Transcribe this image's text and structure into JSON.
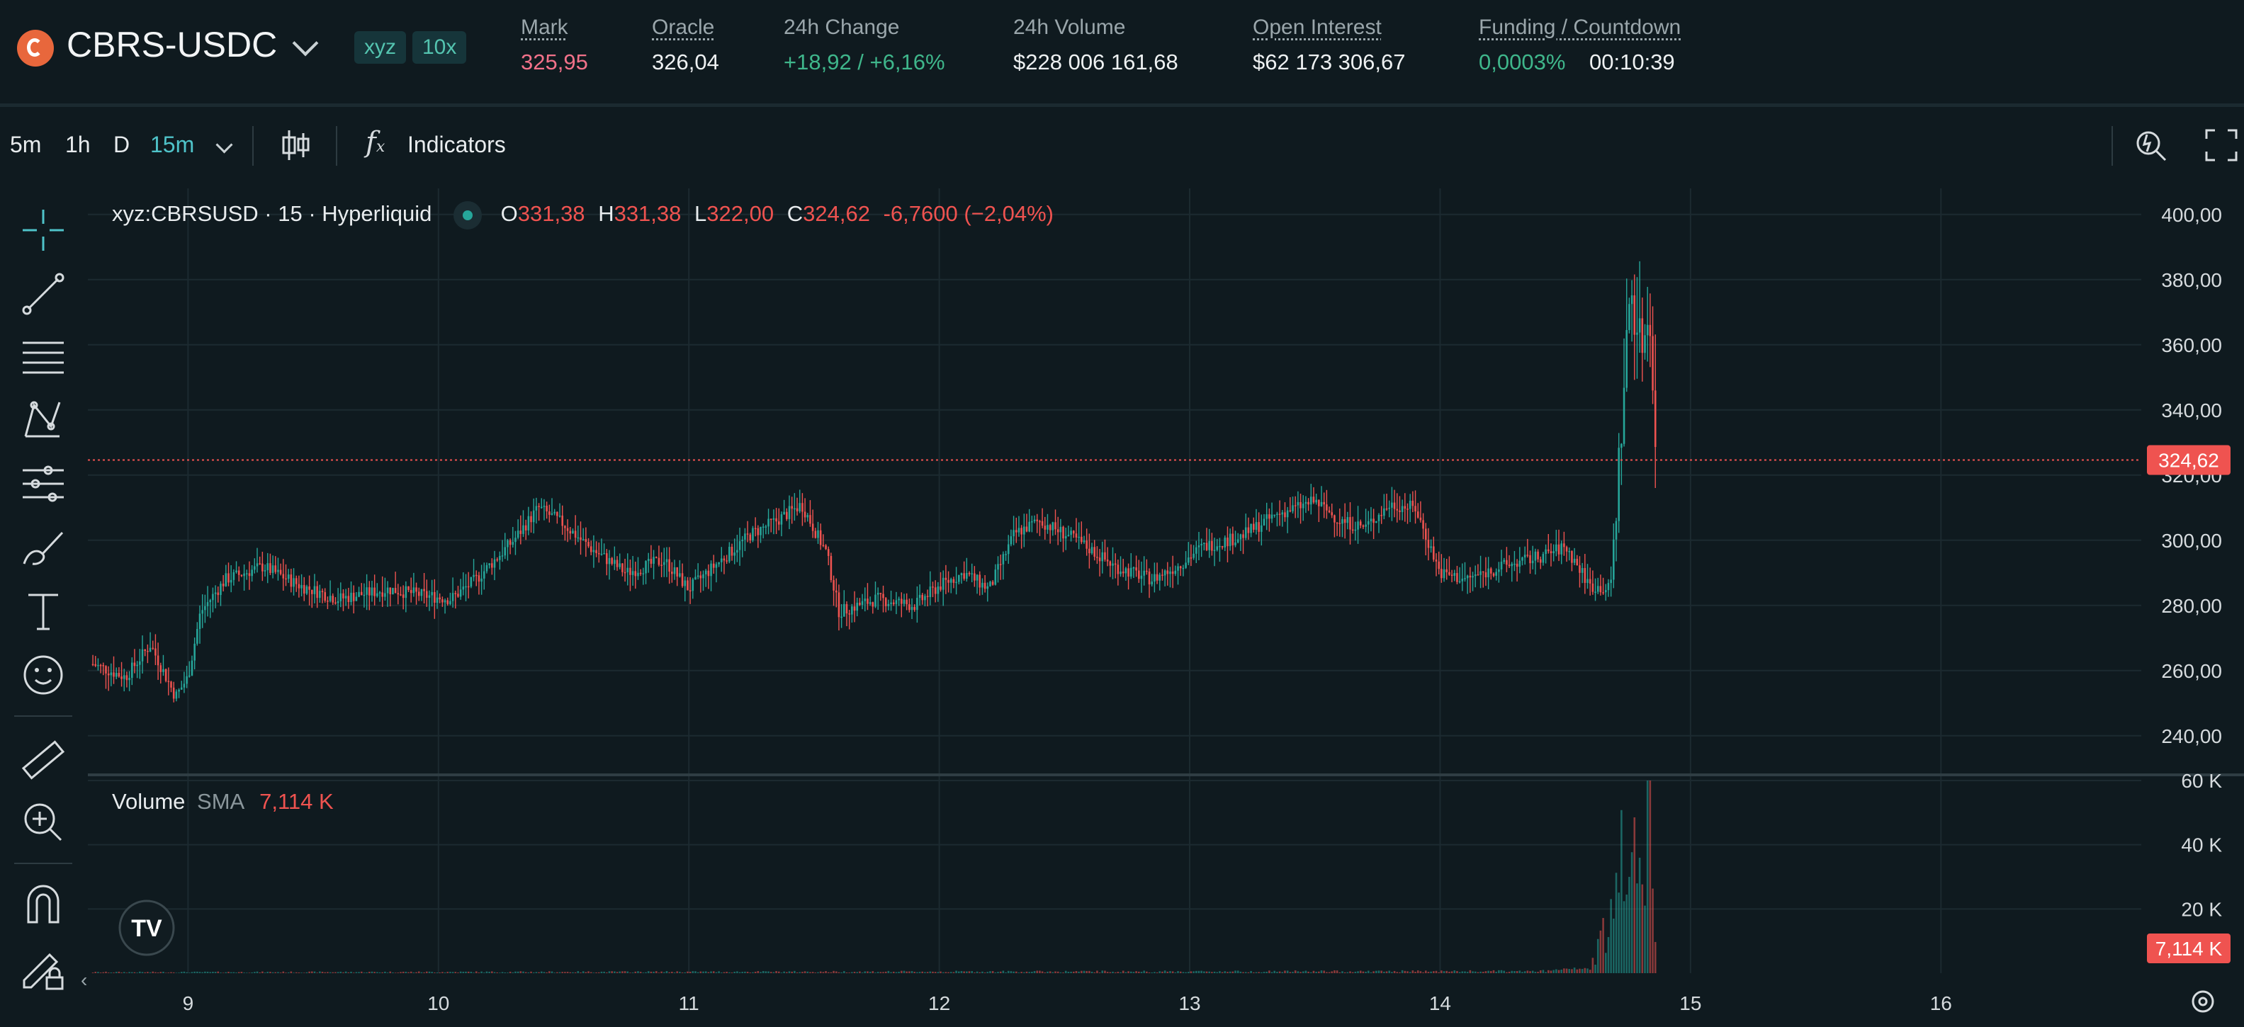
{
  "header": {
    "symbol": "CBRS-USDC",
    "dex_badge": "xyz",
    "leverage_badge": "10x",
    "stats": [
      {
        "label": "Mark",
        "value": "325,95",
        "value_color": "#f2728a"
      },
      {
        "label": "Oracle",
        "value": "326,04",
        "value_color": "#eef1f2"
      },
      {
        "label": "24h Change",
        "value": "+18,92 / +6,16%",
        "value_color": "#3fb68b"
      },
      {
        "label": "24h Volume",
        "value": "$228 006 161,68",
        "value_color": "#eef1f2"
      },
      {
        "label": "Open Interest",
        "value": "$62 173 306,67",
        "value_color": "#eef1f2"
      },
      {
        "label": "Funding / Countdown",
        "value": "0,0003%",
        "value2": "00:10:39",
        "value_color": "#3fb68b"
      }
    ]
  },
  "toolbar": {
    "timeframes": [
      "5m",
      "1h",
      "D"
    ],
    "active_timeframe": "15m",
    "indicators_label": "Indicators",
    "active_color": "#4fc3c9"
  },
  "left_tools": [
    "crosshair-icon",
    "trendline-icon",
    "fib-icon",
    "pattern-icon",
    "gann-icon",
    "brush-icon",
    "text-icon",
    "emoji-icon",
    "ruler-icon",
    "zoom-in-icon",
    "magnet-icon",
    "lock-draw-icon"
  ],
  "legend": {
    "title": "xyz:CBRSUSD · 15 · Hyperliquid",
    "o_label": "O",
    "o": "331,38",
    "h_label": "H",
    "h": "331,38",
    "l_label": "L",
    "l": "322,00",
    "c_label": "C",
    "c": "324,62",
    "change": "-6,7600 (−2,04%)"
  },
  "volume_legend": {
    "label": "Volume",
    "sma_label": "SMA",
    "sma_value": "7,114 K"
  },
  "price_axis": {
    "ticks": [
      "400,00",
      "380,00",
      "360,00",
      "340,00",
      "320,00",
      "300,00",
      "280,00",
      "260,00",
      "240,00"
    ],
    "tick_values": [
      400,
      380,
      360,
      340,
      320,
      300,
      280,
      260,
      240
    ],
    "last_price": "324,62",
    "last_value": 324.62
  },
  "volume_axis": {
    "ticks": [
      "60 K",
      "40 K",
      "20 K"
    ],
    "last_value_label": "7,114 K"
  },
  "time_axis": {
    "ticks": [
      "9",
      "10",
      "11",
      "12",
      "13",
      "14",
      "15",
      "16"
    ]
  },
  "colors": {
    "up": "#26a69a",
    "down": "#ef5350",
    "background": "#0f1a1f",
    "grid": "#1c2a30"
  },
  "chart_data": {
    "type": "candlestick",
    "series_name": "xyz:CBRSUSD",
    "x_unit": "day of month (15m candles)",
    "x_range": [
      8.6,
      16.8
    ],
    "ylim": [
      228,
      408
    ],
    "keypoints": [
      [
        8.62,
        262
      ],
      [
        8.75,
        258
      ],
      [
        8.85,
        268
      ],
      [
        8.95,
        252
      ],
      [
        9.0,
        258
      ],
      [
        9.05,
        278
      ],
      [
        9.15,
        288
      ],
      [
        9.3,
        292
      ],
      [
        9.45,
        286
      ],
      [
        9.6,
        282
      ],
      [
        9.8,
        285
      ],
      [
        9.95,
        283
      ],
      [
        10.05,
        282
      ],
      [
        10.15,
        288
      ],
      [
        10.3,
        300
      ],
      [
        10.4,
        310
      ],
      [
        10.5,
        305
      ],
      [
        10.6,
        298
      ],
      [
        10.75,
        290
      ],
      [
        10.9,
        294
      ],
      [
        11.0,
        285
      ],
      [
        11.1,
        292
      ],
      [
        11.25,
        302
      ],
      [
        11.35,
        306
      ],
      [
        11.45,
        311
      ],
      [
        11.55,
        296
      ],
      [
        11.6,
        278
      ],
      [
        11.75,
        282
      ],
      [
        11.9,
        280
      ],
      [
        12.0,
        286
      ],
      [
        12.1,
        290
      ],
      [
        12.2,
        285
      ],
      [
        12.3,
        302
      ],
      [
        12.4,
        306
      ],
      [
        12.55,
        300
      ],
      [
        12.7,
        292
      ],
      [
        12.85,
        288
      ],
      [
        12.95,
        292
      ],
      [
        13.05,
        298
      ],
      [
        13.2,
        301
      ],
      [
        13.35,
        308
      ],
      [
        13.5,
        312
      ],
      [
        13.6,
        306
      ],
      [
        13.7,
        304
      ],
      [
        13.8,
        311
      ],
      [
        13.9,
        310
      ],
      [
        14.0,
        290
      ],
      [
        14.1,
        288
      ],
      [
        14.25,
        292
      ],
      [
        14.4,
        295
      ],
      [
        14.5,
        298
      ],
      [
        14.6,
        286
      ],
      [
        14.68,
        285
      ],
      [
        14.72,
        330
      ],
      [
        14.76,
        378
      ],
      [
        14.8,
        360
      ],
      [
        14.84,
        370
      ],
      [
        14.86,
        324.62
      ]
    ],
    "volume_keypoints": [
      [
        8.6,
        300
      ],
      [
        14.4,
        600
      ],
      [
        14.6,
        1500
      ],
      [
        14.7,
        20000
      ],
      [
        14.74,
        60000
      ],
      [
        14.76,
        30000
      ],
      [
        14.8,
        45000
      ],
      [
        14.84,
        60000
      ],
      [
        14.86,
        7114
      ]
    ],
    "volume_ylim": [
      0,
      60000
    ]
  }
}
